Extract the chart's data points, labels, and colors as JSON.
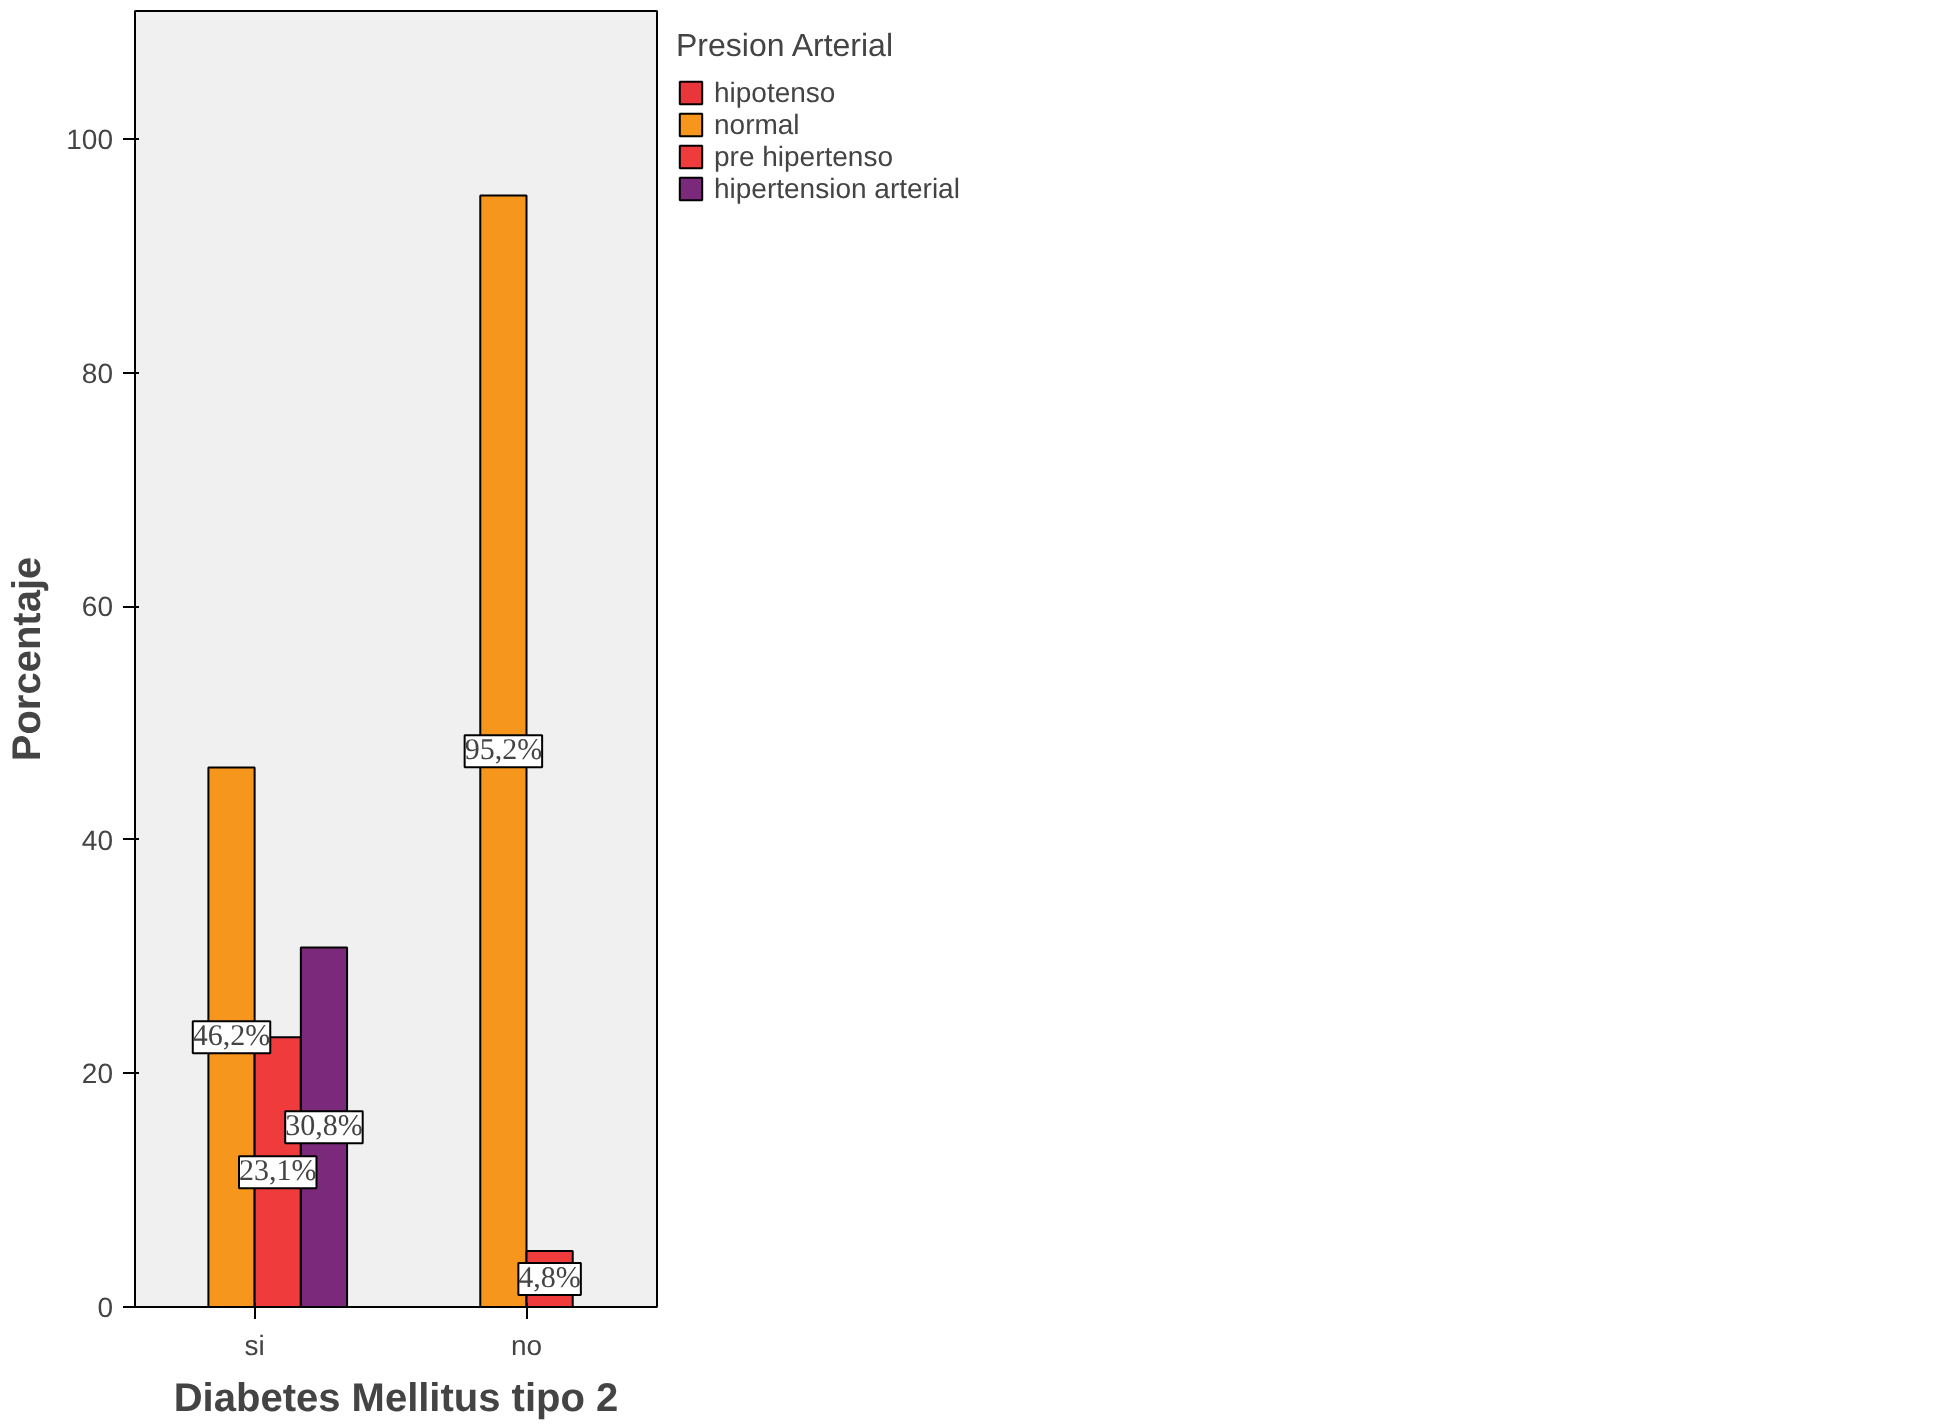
{
  "chart_data": {
    "type": "bar",
    "xlabel": "Diabetes Mellitus tipo 2",
    "ylabel": "Porcentaje",
    "legend_title": "Presion Arterial",
    "categories": [
      "si",
      "no"
    ],
    "series": [
      {
        "name": "hipotenso",
        "color": "#e8363b",
        "values": [
          null,
          null
        ]
      },
      {
        "name": "normal",
        "color": "#f7961d",
        "values": [
          46.2,
          95.2
        ],
        "value_labels": [
          "46,2%",
          "95,2%"
        ]
      },
      {
        "name": "pre hipertenso",
        "color": "#ef3b3c",
        "values": [
          23.1,
          4.8
        ],
        "value_labels": [
          "23,1%",
          "4,8%"
        ]
      },
      {
        "name": "hipertension arterial",
        "color": "#7b2a7b",
        "values": [
          30.8,
          null
        ],
        "value_labels": [
          "30,8%",
          null
        ]
      }
    ],
    "ylim": [
      0,
      111
    ],
    "yticks": [
      0,
      20,
      40,
      60,
      80,
      100
    ],
    "grid": false,
    "legend": "top right"
  }
}
